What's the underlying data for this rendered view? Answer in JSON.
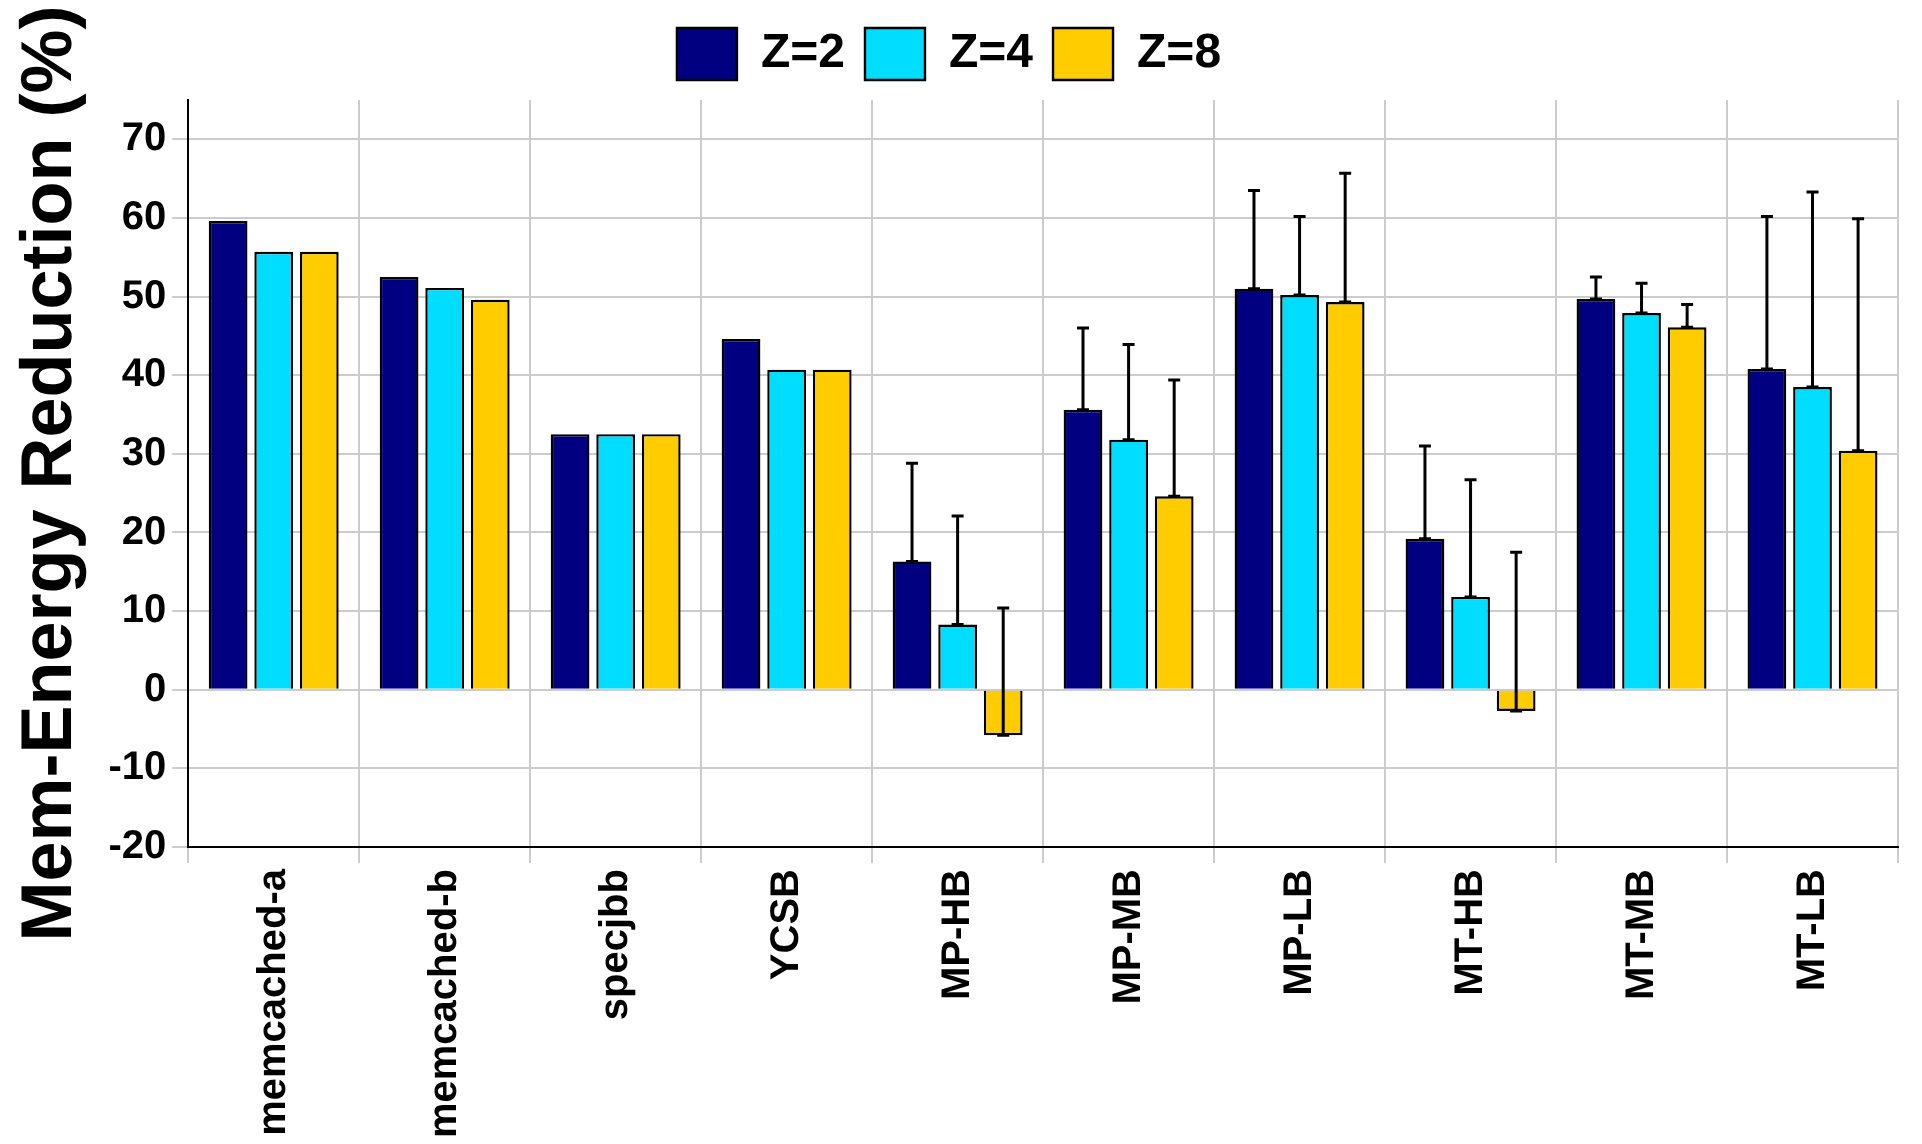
{
  "chart_data": {
    "type": "bar",
    "ylabel": "Mem-Energy Reduction (%)",
    "categories": [
      "memcached-a",
      "memcached-b",
      "specjbb",
      "YCSB",
      "MP-HB",
      "MP-MB",
      "MP-LB",
      "MT-HB",
      "MT-MB",
      "MT-LB"
    ],
    "series": [
      {
        "name": "Z=2",
        "color": "#000080",
        "values": [
          59.6,
          52.5,
          32.5,
          44.6,
          16.3,
          35.6,
          51,
          19.2,
          49.7,
          40.8
        ],
        "errors": [
          null,
          null,
          null,
          null,
          [
            16.3,
            28.8
          ],
          [
            35.6,
            46
          ],
          [
            51,
            63.5
          ],
          [
            19.2,
            31
          ],
          [
            49.7,
            52.5
          ],
          [
            40.8,
            60.2
          ]
        ]
      },
      {
        "name": "Z=4",
        "color": "#00ddff",
        "values": [
          55.7,
          51.1,
          32.5,
          40.7,
          8.3,
          31.8,
          50.2,
          11.8,
          47.9,
          38.5
        ],
        "errors": [
          null,
          null,
          null,
          null,
          [
            8.3,
            22.1
          ],
          [
            31.8,
            43.9
          ],
          [
            50.2,
            60.2
          ],
          [
            11.8,
            26.7
          ],
          [
            47.9,
            51.7
          ],
          [
            38.5,
            63.3
          ]
        ]
      },
      {
        "name": "Z=8",
        "color": "#ffcc00",
        "values": [
          55.7,
          49.6,
          32.5,
          40.7,
          -5.8,
          24.6,
          49.3,
          -2.7,
          46.1,
          30.4
        ],
        "errors": [
          null,
          null,
          null,
          null,
          [
            -5.8,
            10.4
          ],
          [
            24.6,
            39.4
          ],
          [
            49.3,
            65.7
          ],
          [
            -2.7,
            17.5
          ],
          [
            46.1,
            49
          ],
          [
            30.4,
            59.9
          ]
        ]
      }
    ],
    "ylim": [
      -20,
      75
    ],
    "yticks": [
      -20,
      -10,
      0,
      10,
      20,
      30,
      40,
      50,
      60,
      70
    ],
    "grid": true,
    "legend": "top"
  }
}
